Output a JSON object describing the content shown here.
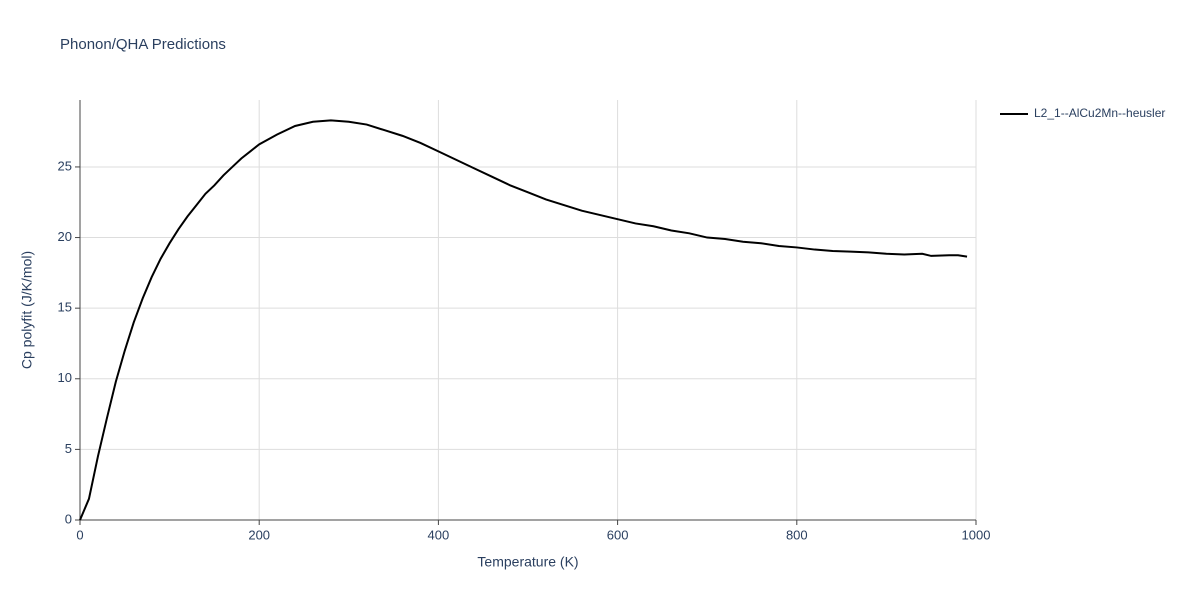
{
  "chart_data": {
    "type": "line",
    "title": "Phonon/QHA Predictions",
    "x_label": "Temperature (K)",
    "y_label": "Cp polyfit (J/K/mol)",
    "x": [
      0,
      10,
      20,
      30,
      40,
      50,
      60,
      70,
      80,
      90,
      100,
      110,
      120,
      130,
      140,
      150,
      160,
      170,
      180,
      190,
      200,
      220,
      240,
      260,
      280,
      300,
      320,
      340,
      360,
      380,
      400,
      420,
      440,
      460,
      480,
      500,
      520,
      540,
      560,
      580,
      600,
      620,
      640,
      660,
      680,
      700,
      720,
      740,
      760,
      780,
      800,
      820,
      840,
      860,
      880,
      900,
      920,
      940,
      950,
      970,
      980,
      990
    ],
    "series": [
      {
        "name": "L2_1--AlCu2Mn--heusler",
        "color": "#000000",
        "values": [
          0,
          1.5,
          4.5,
          7.2,
          9.8,
          12.0,
          14.0,
          15.7,
          17.2,
          18.5,
          19.6,
          20.6,
          21.5,
          22.3,
          23.1,
          23.7,
          24.4,
          25.0,
          25.6,
          26.1,
          26.6,
          27.3,
          27.9,
          28.2,
          28.3,
          28.2,
          28.0,
          27.6,
          27.2,
          26.7,
          26.1,
          25.5,
          24.9,
          24.3,
          23.7,
          23.2,
          22.7,
          22.3,
          21.9,
          21.6,
          21.3,
          21.0,
          20.8,
          20.5,
          20.3,
          20.0,
          19.9,
          19.7,
          19.6,
          19.4,
          19.3,
          19.15,
          19.05,
          19.0,
          18.95,
          18.85,
          18.8,
          18.85,
          18.7,
          18.75,
          18.75,
          18.65
        ]
      }
    ],
    "xlim": [
      0,
      1000
    ],
    "xticks": [
      0,
      200,
      400,
      600,
      800,
      1000
    ],
    "ylim": [
      0,
      29.74
    ],
    "yticks": [
      0,
      5,
      10,
      15,
      20,
      25
    ],
    "grid": true,
    "legend": "right"
  }
}
